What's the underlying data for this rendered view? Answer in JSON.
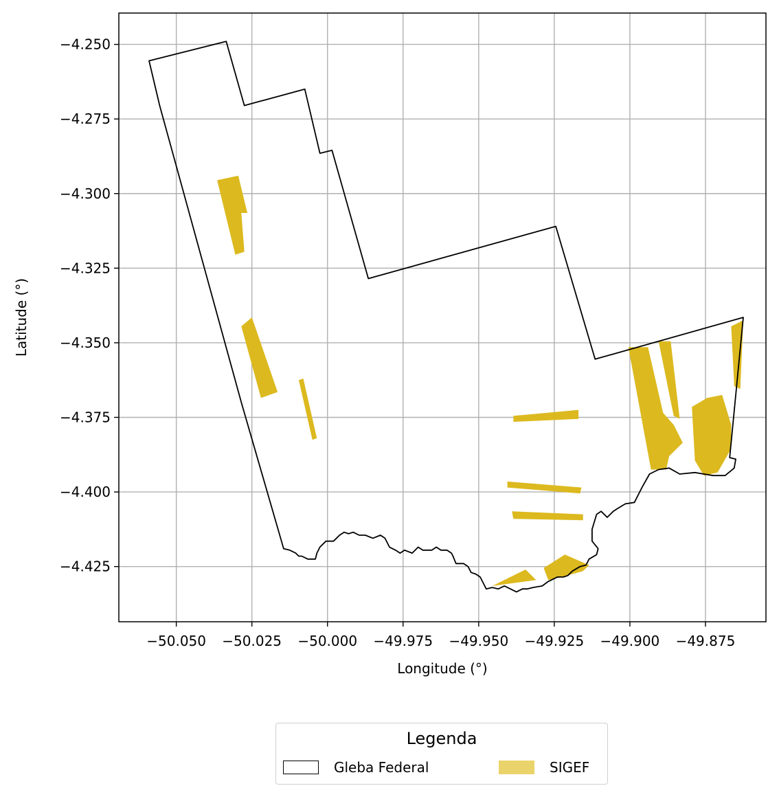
{
  "map": {
    "type": "map",
    "xlabel": "Longitude (°)",
    "ylabel": "Latitude (°)",
    "xlim": [
      -50.069,
      -49.855
    ],
    "ylim": [
      -4.4435,
      -4.2395
    ],
    "grid": true,
    "x_ticks": [
      -50.05,
      -50.025,
      -50.0,
      -49.975,
      -49.95,
      -49.925,
      -49.9,
      -49.875
    ],
    "x_tick_labels": [
      "−50.050",
      "−50.025",
      "−50.000",
      "−49.975",
      "−49.950",
      "−49.925",
      "−49.900",
      "−49.875"
    ],
    "y_ticks": [
      -4.25,
      -4.275,
      -4.3,
      -4.325,
      -4.35,
      -4.375,
      -4.4,
      -4.425
    ],
    "y_tick_labels": [
      "−4.250",
      "−4.275",
      "−4.300",
      "−4.325",
      "−4.350",
      "−4.375",
      "−4.400",
      "−4.425"
    ],
    "colors": {
      "gleba_outline": "#000000",
      "sigef_fill": "#dcb91f",
      "legend_sigef": "#ebd36b",
      "grid": "#b0b0b0"
    },
    "gleba_federal": [
      [
        -50.059,
        -4.2555
      ],
      [
        -50.0335,
        -4.249
      ],
      [
        -50.0275,
        -4.2705
      ],
      [
        -50.0075,
        -4.265
      ],
      [
        -50.0025,
        -4.2865
      ],
      [
        -49.9985,
        -4.2855
      ],
      [
        -49.9865,
        -4.3285
      ],
      [
        -49.9245,
        -4.311
      ],
      [
        -49.9115,
        -4.3555
      ],
      [
        -49.8625,
        -4.3415
      ],
      [
        -49.867,
        -4.3885
      ],
      [
        -49.865,
        -4.389
      ],
      [
        -49.8655,
        -4.392
      ],
      [
        -49.8685,
        -4.3945
      ],
      [
        -49.8725,
        -4.3945
      ],
      [
        -49.8785,
        -4.3935
      ],
      [
        -49.8835,
        -4.394
      ],
      [
        -49.887,
        -4.392
      ],
      [
        -49.8905,
        -4.3925
      ],
      [
        -49.8935,
        -4.394
      ],
      [
        -49.896,
        -4.3985
      ],
      [
        -49.8985,
        -4.4035
      ],
      [
        -49.9015,
        -4.404
      ],
      [
        -49.904,
        -4.4055
      ],
      [
        -49.9055,
        -4.4065
      ],
      [
        -49.9075,
        -4.4085
      ],
      [
        -49.9095,
        -4.4065
      ],
      [
        -49.911,
        -4.4075
      ],
      [
        -49.9125,
        -4.4125
      ],
      [
        -49.9125,
        -4.4165
      ],
      [
        -49.9105,
        -4.419
      ],
      [
        -49.911,
        -4.421
      ],
      [
        -49.9135,
        -4.4225
      ],
      [
        -49.9145,
        -4.4245
      ],
      [
        -49.9165,
        -4.425
      ],
      [
        -49.919,
        -4.4265
      ],
      [
        -49.9205,
        -4.428
      ],
      [
        -49.922,
        -4.4285
      ],
      [
        -49.924,
        -4.4285
      ],
      [
        -49.927,
        -4.43
      ],
      [
        -49.929,
        -4.4315
      ],
      [
        -49.932,
        -4.432
      ],
      [
        -49.934,
        -4.4325
      ],
      [
        -49.9355,
        -4.4325
      ],
      [
        -49.9375,
        -4.4335
      ],
      [
        -49.9395,
        -4.4325
      ],
      [
        -49.9415,
        -4.4315
      ],
      [
        -49.9435,
        -4.4325
      ],
      [
        -49.9455,
        -4.432
      ],
      [
        -49.9475,
        -4.4325
      ],
      [
        -49.9485,
        -4.4305
      ],
      [
        -49.9495,
        -4.4285
      ],
      [
        -49.951,
        -4.4275
      ],
      [
        -49.9525,
        -4.427
      ],
      [
        -49.9535,
        -4.425
      ],
      [
        -49.955,
        -4.424
      ],
      [
        -49.9575,
        -4.424
      ],
      [
        -49.9585,
        -4.4215
      ],
      [
        -49.959,
        -4.4205
      ],
      [
        -49.9605,
        -4.4195
      ],
      [
        -49.9625,
        -4.4195
      ],
      [
        -49.964,
        -4.4185
      ],
      [
        -49.9655,
        -4.4195
      ],
      [
        -49.9685,
        -4.4195
      ],
      [
        -49.97,
        -4.4185
      ],
      [
        -49.972,
        -4.4205
      ],
      [
        -49.9745,
        -4.4195
      ],
      [
        -49.976,
        -4.4205
      ],
      [
        -49.9775,
        -4.4195
      ],
      [
        -49.9795,
        -4.4185
      ],
      [
        -49.981,
        -4.4155
      ],
      [
        -49.9825,
        -4.4145
      ],
      [
        -49.985,
        -4.4155
      ],
      [
        -49.9875,
        -4.4145
      ],
      [
        -49.9895,
        -4.4145
      ],
      [
        -49.9915,
        -4.4135
      ],
      [
        -49.993,
        -4.414
      ],
      [
        -49.9945,
        -4.4135
      ],
      [
        -49.996,
        -4.4145
      ],
      [
        -49.998,
        -4.4165
      ],
      [
        -50.0005,
        -4.4165
      ],
      [
        -50.0025,
        -4.4185
      ],
      [
        -50.0035,
        -4.4205
      ],
      [
        -50.004,
        -4.4225
      ],
      [
        -50.0065,
        -4.4225
      ],
      [
        -50.0085,
        -4.4215
      ],
      [
        -50.0095,
        -4.4215
      ],
      [
        -50.0105,
        -4.4205
      ],
      [
        -50.0125,
        -4.4195
      ],
      [
        -50.0145,
        -4.419
      ],
      [
        -50.0285,
        -4.37
      ],
      [
        -50.0555,
        -4.2705
      ],
      [
        -50.059,
        -4.2555
      ]
    ],
    "sigef_parcels": [
      [
        [
          -50.0365,
          -4.2955
        ],
        [
          -50.0295,
          -4.294
        ],
        [
          -50.0265,
          -4.3065
        ],
        [
          -50.0285,
          -4.3065
        ],
        [
          -50.0275,
          -4.3195
        ],
        [
          -50.0305,
          -4.3205
        ]
      ],
      [
        [
          -50.0285,
          -4.3445
        ],
        [
          -50.025,
          -4.3415
        ],
        [
          -50.0165,
          -4.3665
        ],
        [
          -50.022,
          -4.3685
        ]
      ],
      [
        [
          -50.0095,
          -4.3625
        ],
        [
          -50.008,
          -4.362
        ],
        [
          -50.0035,
          -4.382
        ],
        [
          -50.005,
          -4.3825
        ]
      ],
      [
        [
          -49.9385,
          -4.3745
        ],
        [
          -49.917,
          -4.3725
        ],
        [
          -49.917,
          -4.3755
        ],
        [
          -49.9385,
          -4.3765
        ]
      ],
      [
        [
          -49.9405,
          -4.3965
        ],
        [
          -49.916,
          -4.3985
        ],
        [
          -49.9165,
          -4.4005
        ],
        [
          -49.9405,
          -4.3985
        ]
      ],
      [
        [
          -49.939,
          -4.4065
        ],
        [
          -49.9155,
          -4.4075
        ],
        [
          -49.9155,
          -4.4095
        ],
        [
          -49.9385,
          -4.409
        ]
      ],
      [
        [
          -49.9455,
          -4.4315
        ],
        [
          -49.9345,
          -4.426
        ],
        [
          -49.931,
          -4.4295
        ]
      ],
      [
        [
          -49.9285,
          -4.4255
        ],
        [
          -49.9215,
          -4.421
        ],
        [
          -49.9135,
          -4.4245
        ],
        [
          -49.9155,
          -4.4265
        ],
        [
          -49.9225,
          -4.4285
        ],
        [
          -49.927,
          -4.4295
        ]
      ],
      [
        [
          -49.9005,
          -4.3515
        ],
        [
          -49.894,
          -4.3515
        ],
        [
          -49.889,
          -4.3735
        ],
        [
          -49.8855,
          -4.3775
        ],
        [
          -49.8825,
          -4.3835
        ],
        [
          -49.887,
          -4.388
        ],
        [
          -49.888,
          -4.3925
        ],
        [
          -49.893,
          -4.3925
        ]
      ],
      [
        [
          -49.8905,
          -4.3495
        ],
        [
          -49.8865,
          -4.3495
        ],
        [
          -49.8835,
          -4.3755
        ],
        [
          -49.8855,
          -4.3745
        ]
      ],
      [
        [
          -49.8795,
          -4.3715
        ],
        [
          -49.8745,
          -4.3685
        ],
        [
          -49.8695,
          -4.3675
        ],
        [
          -49.8665,
          -4.3775
        ],
        [
          -49.8665,
          -4.3855
        ],
        [
          -49.871,
          -4.3935
        ],
        [
          -49.8755,
          -4.3945
        ],
        [
          -49.8785,
          -4.3895
        ]
      ],
      [
        [
          -49.8665,
          -4.3445
        ],
        [
          -49.8625,
          -4.3425
        ],
        [
          -49.8635,
          -4.3655
        ],
        [
          -49.8655,
          -4.3645
        ]
      ]
    ]
  },
  "legend": {
    "title": "Legenda",
    "items": [
      {
        "label": "Gleba Federal",
        "style": "outline"
      },
      {
        "label": "SIGEF",
        "style": "fill"
      }
    ]
  }
}
